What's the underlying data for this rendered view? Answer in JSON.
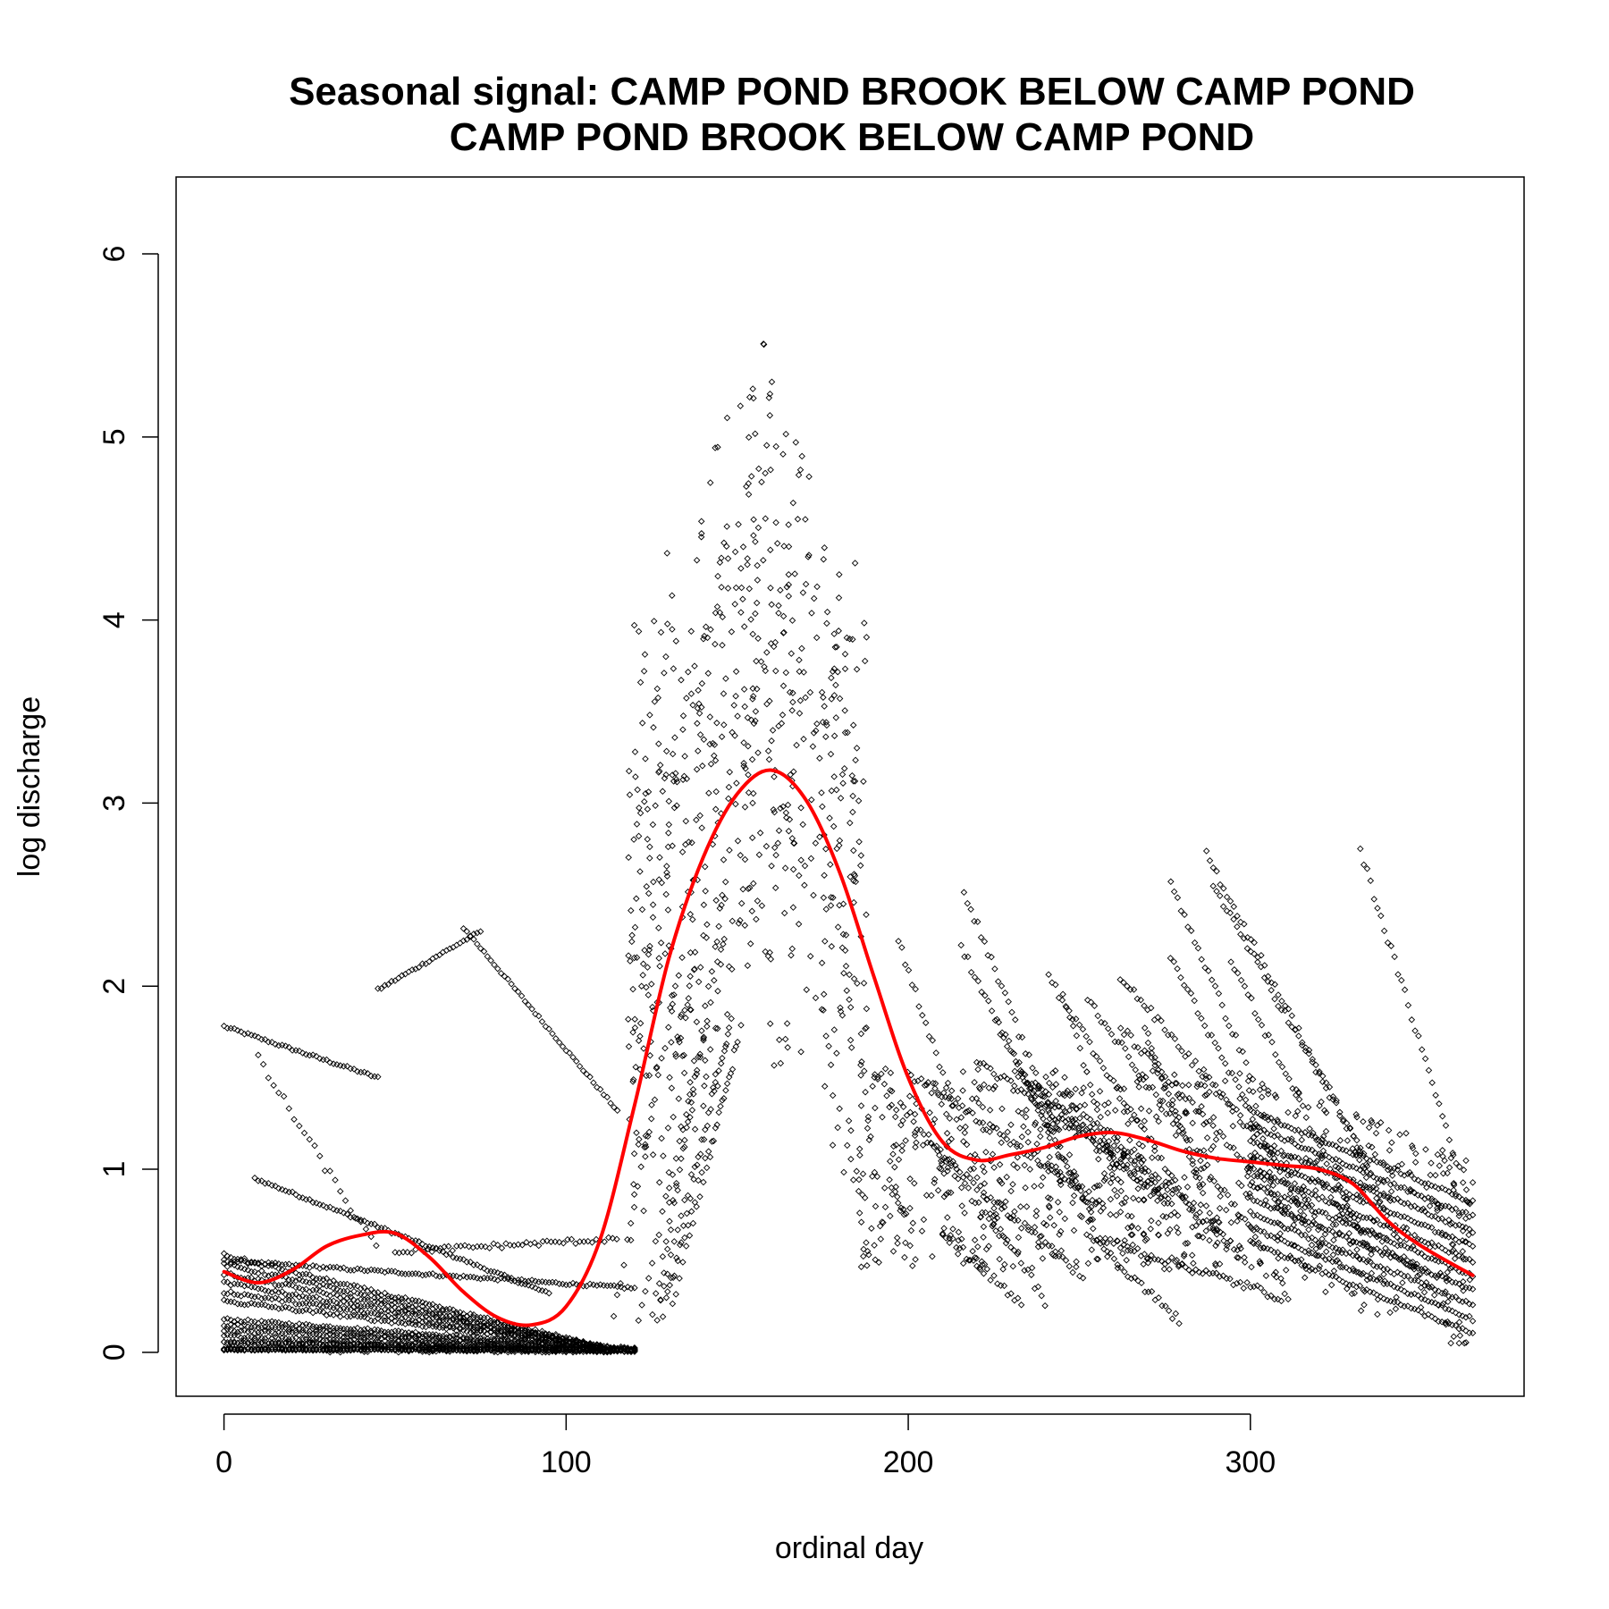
{
  "chart_data": {
    "type": "scatter",
    "title": "Seasonal signal: CAMP POND BROOK BELOW CAMP POND",
    "subtitle": "CAMP POND BROOK BELOW CAMP POND",
    "xlabel": "ordinal day",
    "ylabel": "log discharge",
    "xlim": [
      -14,
      380
    ],
    "ylim": [
      -0.24,
      6.42
    ],
    "xticks": [
      0,
      100,
      200,
      300
    ],
    "yticks": [
      0,
      1,
      2,
      3,
      4,
      5,
      6
    ],
    "grid": false,
    "point_color": "#000000",
    "smooth_color": "#ff0000",
    "series": [
      {
        "type": "line",
        "x": [
          0,
          10,
          20,
          30,
          40,
          50,
          60,
          70,
          80,
          90,
          100,
          110,
          120,
          130,
          140,
          150,
          160,
          170,
          180,
          190,
          200,
          210,
          220,
          230,
          240,
          250,
          260,
          270,
          280,
          290,
          300,
          310,
          320,
          330,
          340,
          350,
          365
        ],
        "y": [
          0.44,
          0.38,
          0.45,
          0.58,
          0.64,
          0.65,
          0.52,
          0.33,
          0.19,
          0.15,
          0.25,
          0.62,
          1.35,
          2.15,
          2.7,
          3.05,
          3.18,
          3.02,
          2.62,
          2.05,
          1.5,
          1.15,
          1.05,
          1.08,
          1.12,
          1.18,
          1.2,
          1.16,
          1.1,
          1.06,
          1.04,
          1.02,
          1.0,
          0.92,
          0.72,
          0.58,
          0.42
        ]
      }
    ],
    "point_groups": [
      {
        "x_range": [
          0,
          45
        ],
        "y_start": 1.78,
        "y_end": 1.5
      },
      {
        "x_range": [
          9,
          95
        ],
        "y_start": 0.95,
        "y_end": 0.32
      },
      {
        "x_range": [
          70,
          115
        ],
        "y_start": 2.32,
        "y_end": 1.32
      },
      {
        "x_range": [
          45,
          75
        ],
        "y_start": 1.98,
        "y_end": 2.3
      },
      {
        "x_range": [
          0,
          120
        ],
        "y_start": 0.5,
        "y_end": 0.35
      },
      {
        "x_range": [
          0,
          120
        ],
        "y_start": 0.18,
        "y_end": 0.02
      },
      {
        "x_range": [
          0,
          120
        ],
        "y_start": 0.05,
        "y_end": 0.02
      },
      {
        "x_range": [
          120,
          185
        ],
        "y_center": 3.2
      },
      {
        "x_range": [
          185,
          365
        ],
        "y_center": 1.0
      }
    ]
  }
}
